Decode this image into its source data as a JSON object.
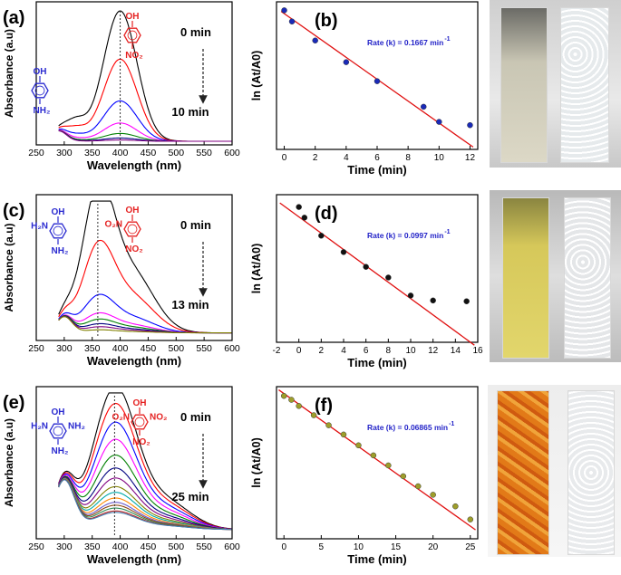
{
  "panels": [
    {
      "label": "(a)",
      "axis": {
        "xlabel": "Wavelength (nm)",
        "ylabel": "Absorbance (a.u)"
      },
      "times": {
        "start": "0 min",
        "end": "10 min"
      },
      "reactant_chem": "4-nitrophenol",
      "product_chem": "4-aminophenol",
      "reactant_labels": [
        "OH",
        "NO₂"
      ],
      "product_labels": [
        "OH",
        "NH₂"
      ]
    },
    {
      "label": "(c)",
      "axis": {
        "xlabel": "Wavelength (nm)",
        "ylabel": "Absorbance (a.u)"
      },
      "times": {
        "start": "0 min",
        "end": "13 min"
      },
      "reactant_chem": "2,4-dinitrophenol",
      "product_chem": "2,4-diaminophenol",
      "reactant_labels": [
        "OH",
        "O₂N",
        "NO₂"
      ],
      "product_labels": [
        "OH",
        "H₂N",
        "NH₂"
      ]
    },
    {
      "label": "(e)",
      "axis": {
        "xlabel": "Wavelength (nm)",
        "ylabel": "Absorbance (a.u)"
      },
      "times": {
        "start": "0 min",
        "end": "25 min"
      },
      "reactant_chem": "2,4,6-trinitrophenol",
      "product_chem": "2,4,6-triaminophenol",
      "reactant_labels": [
        "OH",
        "O₂N",
        "NO₂",
        "NO₂"
      ],
      "product_labels": [
        "OH",
        "H₂N",
        "NH₂",
        "NH₂"
      ]
    }
  ],
  "kinetics": [
    {
      "label": "(b)",
      "xlabel": "Time (min)",
      "ylabel": "ln (At/A0)",
      "rate_text": "Rate (k) = 0.1667 min",
      "rate_exp": "-1"
    },
    {
      "label": "(d)",
      "xlabel": "Time (min)",
      "ylabel": "ln (At/A0)",
      "rate_text": "Rate (k) = 0.0997 min",
      "rate_exp": "-1"
    },
    {
      "label": "(f)",
      "xlabel": "Time (min)",
      "ylabel": "ln (At/A0)",
      "rate_text": "Rate (k) = 0.06865 min",
      "rate_exp": "-1"
    }
  ],
  "colors": {
    "reactant_structure": "#e52222",
    "product_structure": "#2a2ad0",
    "fit_line": "#e01010",
    "arrow": "#222222"
  },
  "chart_data": [
    {
      "id": "a",
      "type": "line",
      "xlabel": "Wavelength (nm)",
      "ylabel": "Absorbance (a.u)",
      "xlim": [
        250,
        600
      ],
      "xticks": [
        250,
        300,
        350,
        400,
        450,
        500,
        550,
        600
      ],
      "ylim": [
        0,
        1
      ],
      "yticks_shown": false,
      "peak_marker_nm": 400,
      "series_colors": [
        "#000000",
        "#ff0000",
        "#0000ff",
        "#ff00ff",
        "#008000",
        "#000080",
        "#800080"
      ],
      "peak_values": [
        1.0,
        0.63,
        0.31,
        0.14,
        0.06,
        0.025,
        0.01
      ],
      "times": [
        "0 min",
        "10 min"
      ]
    },
    {
      "id": "b",
      "type": "scatter",
      "xlabel": "Time (min)",
      "ylabel": "ln (At/A0)",
      "xlim": [
        -0.5,
        12.5
      ],
      "xticks": [
        0,
        2,
        4,
        6,
        8,
        10,
        12
      ],
      "ylim": [
        -2.1,
        0.15
      ],
      "yticks_shown": false,
      "x": [
        0,
        0.5,
        2,
        4,
        6,
        9,
        10,
        12
      ],
      "y": [
        0.02,
        -0.15,
        -0.44,
        -0.77,
        -1.06,
        -1.45,
        -1.68,
        -1.73
      ],
      "marker_color": "#1a2ab8",
      "fit": {
        "slope": -0.1667,
        "intercept": -0.03
      },
      "rate_text": "Rate (k) = 0.1667 min-1"
    },
    {
      "id": "c",
      "type": "line",
      "xlabel": "Wavelength (nm)",
      "ylabel": "Absorbance (a.u)",
      "xlim": [
        250,
        600
      ],
      "xticks": [
        250,
        300,
        350,
        400,
        450,
        500,
        550,
        600
      ],
      "ylim": [
        0,
        1
      ],
      "yticks_shown": false,
      "peak_marker_nm": 360,
      "series_colors": [
        "#000000",
        "#ff0000",
        "#0000ff",
        "#ff00ff",
        "#008000",
        "#000080",
        "#800080",
        "#808000"
      ],
      "peak_values": [
        1.0,
        0.6,
        0.25,
        0.13,
        0.09,
        0.06,
        0.04,
        0.02
      ],
      "times": [
        "0 min",
        "13 min"
      ]
    },
    {
      "id": "d",
      "type": "scatter",
      "xlabel": "Time (min)",
      "ylabel": "ln (At/A0)",
      "xlim": [
        -2,
        16
      ],
      "xticks": [
        -2,
        0,
        2,
        4,
        6,
        8,
        10,
        12,
        14,
        16
      ],
      "ylim": [
        -1.65,
        0.15
      ],
      "yticks_shown": false,
      "x": [
        0,
        0.5,
        2,
        4,
        6,
        8,
        10,
        12,
        15
      ],
      "y": [
        0.0,
        -0.13,
        -0.35,
        -0.55,
        -0.73,
        -0.86,
        -1.08,
        -1.14,
        -1.15
      ],
      "marker_color": "#111111",
      "fit": {
        "slope": -0.0997,
        "intercept": -0.12
      },
      "rate_text": "Rate (k) = 0.0997 min-1"
    },
    {
      "id": "e",
      "type": "line",
      "xlabel": "Wavelength (nm)",
      "ylabel": "Absorbance (a.u)",
      "xlim": [
        250,
        600
      ],
      "xticks": [
        250,
        300,
        350,
        400,
        450,
        500,
        550,
        600
      ],
      "ylim": [
        0,
        1
      ],
      "yticks_shown": false,
      "peak_marker_nm": 390,
      "series_colors": [
        "#000000",
        "#ff0000",
        "#0000ff",
        "#ff00ff",
        "#008000",
        "#000080",
        "#800080",
        "#808000",
        "#00aaaa",
        "#ff8800",
        "#6a5acd",
        "#8b4513",
        "#2e8b57",
        "#b22222",
        "#4682b4"
      ],
      "peak_values": [
        1.0,
        0.88,
        0.75,
        0.63,
        0.52,
        0.43,
        0.36,
        0.3,
        0.26,
        0.22,
        0.19,
        0.17,
        0.15,
        0.13,
        0.12
      ],
      "times": [
        "0 min",
        "25 min"
      ]
    },
    {
      "id": "f",
      "type": "scatter",
      "xlabel": "Time (min)",
      "ylabel": "ln (At/A0)",
      "xlim": [
        -1,
        26
      ],
      "xticks": [
        0,
        5,
        10,
        15,
        20,
        25
      ],
      "ylim": [
        -1.85,
        0.12
      ],
      "yticks_shown": false,
      "x": [
        0,
        1,
        2,
        4,
        6,
        8,
        10,
        12,
        14,
        16,
        18,
        20,
        23,
        25
      ],
      "y": [
        0.0,
        -0.05,
        -0.13,
        -0.25,
        -0.38,
        -0.5,
        -0.64,
        -0.77,
        -0.9,
        -1.04,
        -1.17,
        -1.28,
        -1.43,
        -1.6
      ],
      "marker_color": "#9e9e2a",
      "fit": {
        "slope": -0.06865,
        "intercept": 0.03
      },
      "rate_text": "Rate (k) = 0.06865 min-1"
    }
  ],
  "photos": [
    {
      "id": "ph-a",
      "description_colors": {
        "left_liquid": "#d9d6c4",
        "right_liquid": "#e8ecee"
      }
    },
    {
      "id": "ph-c",
      "description_colors": {
        "left_liquid": "#d8c95a",
        "right_liquid": "#e6e8ea"
      }
    },
    {
      "id": "ph-e",
      "description_colors": {
        "left_liquid": "#e07a1a",
        "right_liquid": "#eceeef"
      }
    }
  ]
}
